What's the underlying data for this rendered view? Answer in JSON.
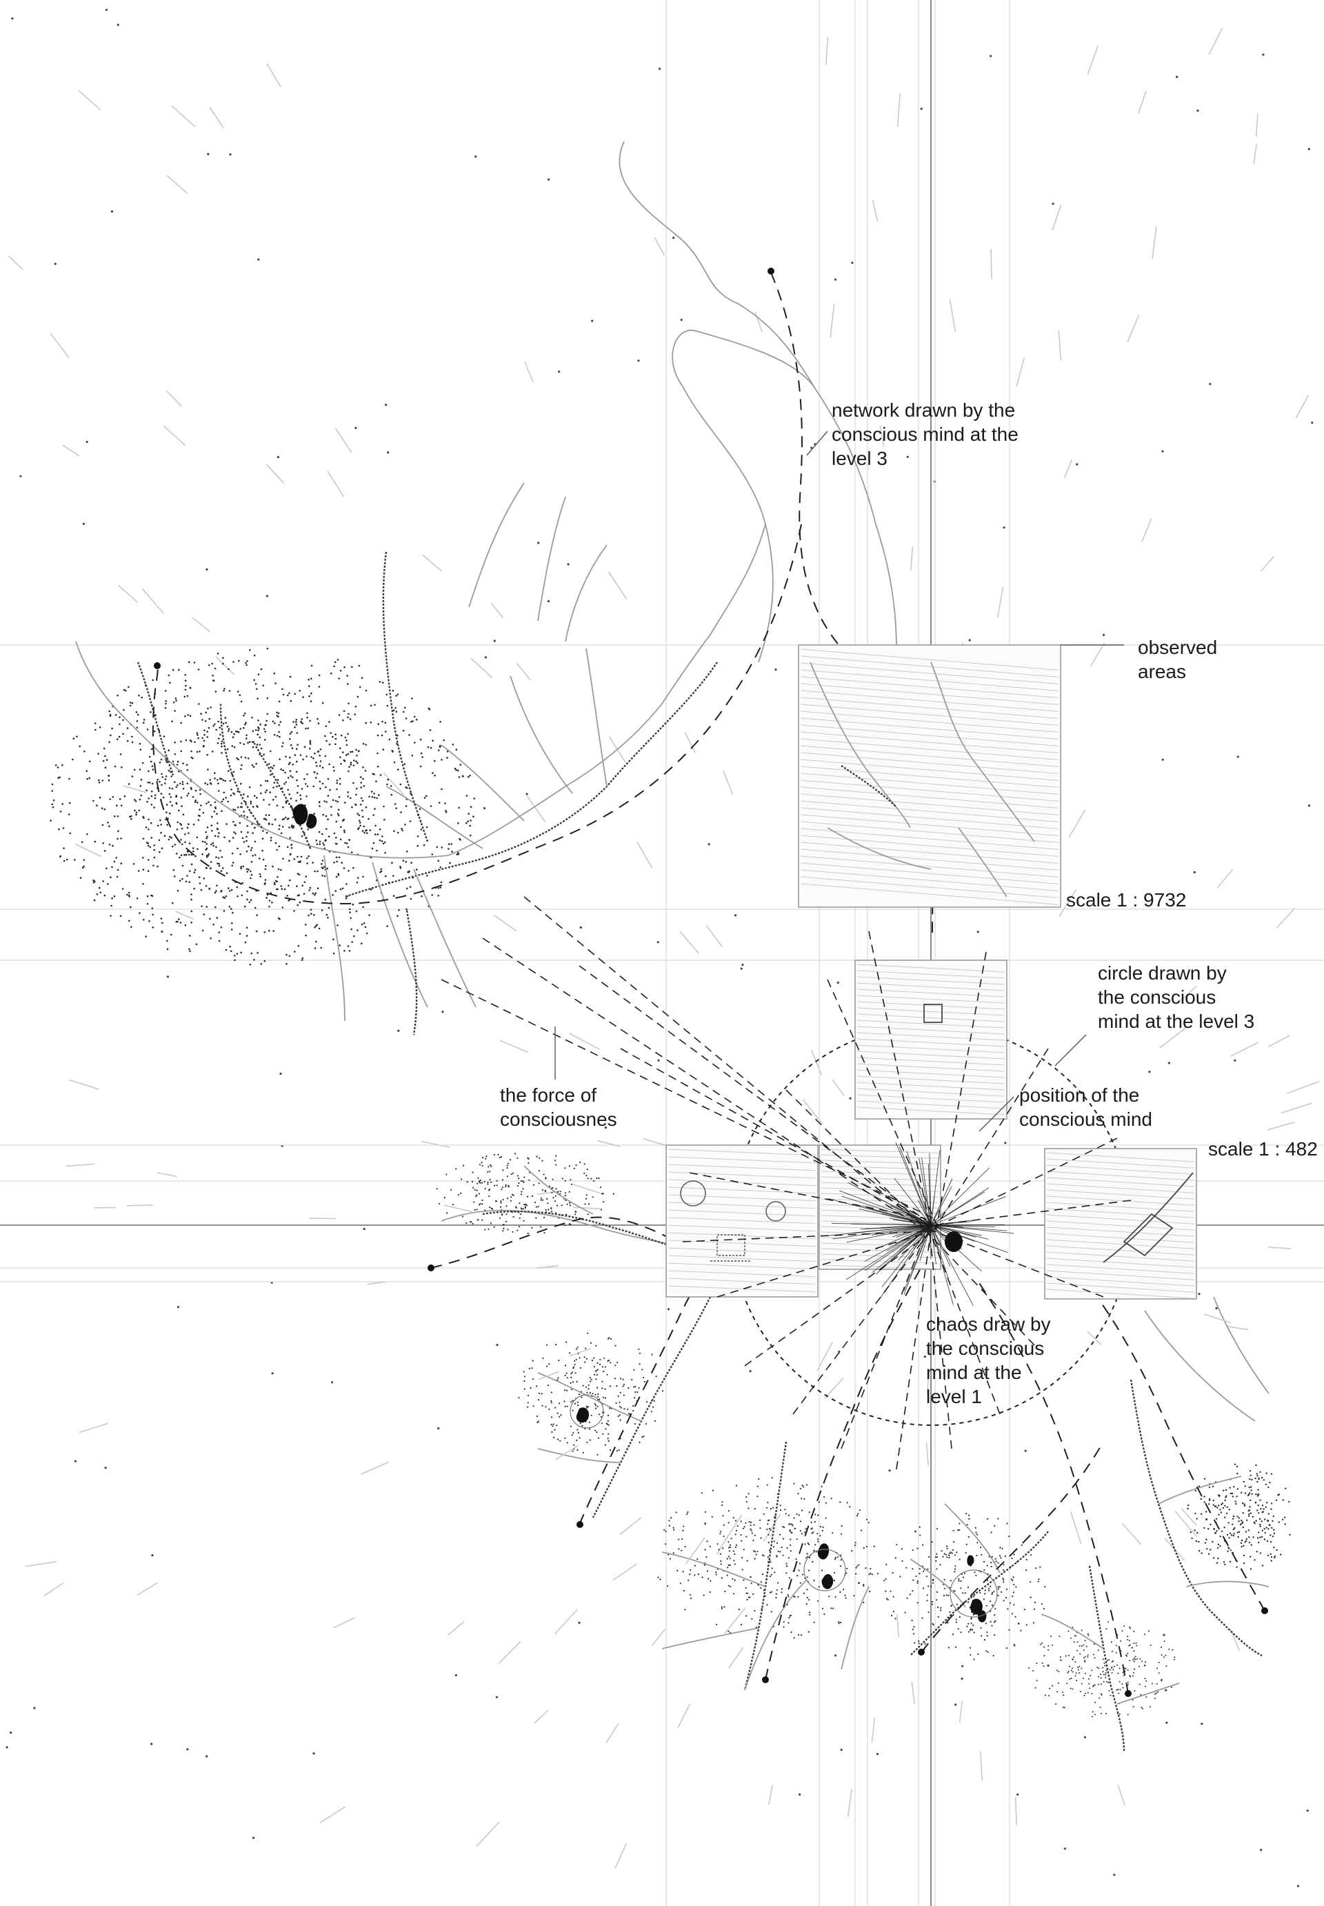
{
  "labels": {
    "network": [
      "network drawn by the",
      "conscious mind at the",
      "level 3"
    ],
    "observed": [
      "observed",
      "areas"
    ],
    "scale_large": "scale 1 : 9732",
    "circle": [
      "circle drawn by",
      "the conscious",
      "mind at the level 3"
    ],
    "position": [
      "position of the",
      "conscious mind"
    ],
    "force": [
      "the force of",
      "consciousnes"
    ],
    "scale_small": "scale 1 : 482",
    "chaos": [
      "chaos draw by",
      "the conscious",
      "mind at the",
      "level 1"
    ]
  },
  "colors": {
    "ink": "#1a1a1a",
    "grid": "#d9d9d9",
    "river": "#9a9a9a",
    "stipple": "#2a2a2a"
  }
}
